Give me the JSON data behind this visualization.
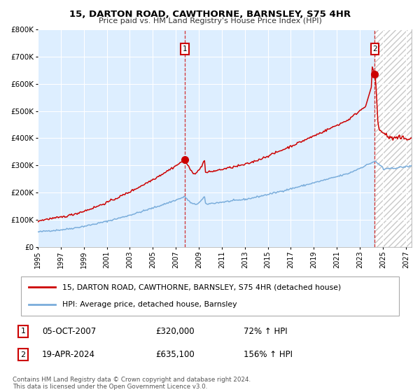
{
  "title1": "15, DARTON ROAD, CAWTHORNE, BARNSLEY, S75 4HR",
  "title2": "Price paid vs. HM Land Registry's House Price Index (HPI)",
  "xlim_start": 1995.0,
  "xlim_end": 2027.5,
  "ylim": [
    0,
    800000
  ],
  "yticks": [
    0,
    100000,
    200000,
    300000,
    400000,
    500000,
    600000,
    700000,
    800000
  ],
  "ytick_labels": [
    "£0",
    "£100K",
    "£200K",
    "£300K",
    "£400K",
    "£500K",
    "£600K",
    "£700K",
    "£800K"
  ],
  "sale1_x": 2007.76,
  "sale1_y": 320000,
  "sale2_x": 2024.3,
  "sale2_y": 635100,
  "hpi_color": "#7aaddb",
  "price_color": "#cc0000",
  "background_color": "#ddeeff",
  "grid_color": "#ffffff",
  "legend_label1": "15, DARTON ROAD, CAWTHORNE, BARNSLEY, S75 4HR (detached house)",
  "legend_label2": "HPI: Average price, detached house, Barnsley",
  "annotation1_label": "1",
  "annotation1_date": "05-OCT-2007",
  "annotation1_price": "£320,000",
  "annotation1_hpi": "72% ↑ HPI",
  "annotation2_label": "2",
  "annotation2_date": "19-APR-2024",
  "annotation2_price": "£635,100",
  "annotation2_hpi": "156% ↑ HPI",
  "footnote": "Contains HM Land Registry data © Crown copyright and database right 2024.\nThis data is licensed under the Open Government Licence v3.0.",
  "xtick_years": [
    1995,
    1997,
    1999,
    2001,
    2003,
    2005,
    2007,
    2009,
    2011,
    2013,
    2015,
    2017,
    2019,
    2021,
    2023,
    2025,
    2027
  ]
}
